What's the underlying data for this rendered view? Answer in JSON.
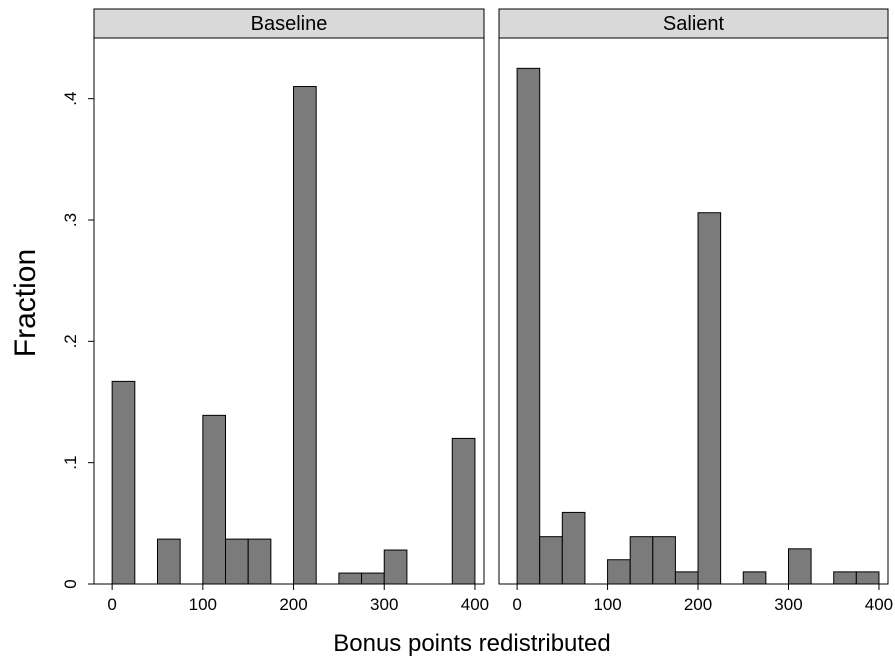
{
  "chart_data": {
    "type": "bar",
    "ylabel": "Fraction",
    "xlabel": "Bonus points redistributed",
    "ylim": [
      0,
      0.45
    ],
    "xlim": [
      -20,
      410
    ],
    "yticks": [
      0,
      0.1,
      0.2,
      0.3,
      0.4
    ],
    "ytick_labels": [
      "0",
      ".1",
      ".2",
      ".3",
      ".4"
    ],
    "xticks": [
      0,
      100,
      200,
      300,
      400
    ],
    "xtick_labels": [
      "0",
      "100",
      "200",
      "300",
      "400"
    ],
    "bar_color": "#7b7b7b",
    "header_color": "#d9d9d9",
    "bin_width": 25,
    "panels": [
      {
        "title": "Baseline",
        "bins": [
          {
            "x0": 0,
            "value": 0.167
          },
          {
            "x0": 50,
            "value": 0.037
          },
          {
            "x0": 100,
            "value": 0.139
          },
          {
            "x0": 125,
            "value": 0.037
          },
          {
            "x0": 150,
            "value": 0.037
          },
          {
            "x0": 200,
            "value": 0.41
          },
          {
            "x0": 250,
            "value": 0.009
          },
          {
            "x0": 275,
            "value": 0.009
          },
          {
            "x0": 300,
            "value": 0.028
          },
          {
            "x0": 375,
            "value": 0.12
          }
        ]
      },
      {
        "title": "Salient",
        "bins": [
          {
            "x0": 0,
            "value": 0.425
          },
          {
            "x0": 25,
            "value": 0.039
          },
          {
            "x0": 50,
            "value": 0.059
          },
          {
            "x0": 100,
            "value": 0.02
          },
          {
            "x0": 125,
            "value": 0.039
          },
          {
            "x0": 150,
            "value": 0.039
          },
          {
            "x0": 175,
            "value": 0.01
          },
          {
            "x0": 200,
            "value": 0.306
          },
          {
            "x0": 250,
            "value": 0.01
          },
          {
            "x0": 300,
            "value": 0.029
          },
          {
            "x0": 350,
            "value": 0.01
          },
          {
            "x0": 375,
            "value": 0.01
          }
        ]
      }
    ]
  }
}
